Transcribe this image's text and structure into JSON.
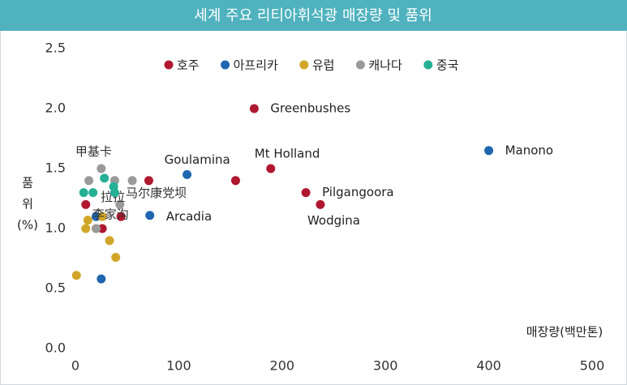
{
  "chart_data": {
    "type": "scatter",
    "title": "세계 주요 리티아휘석광 매장량 및 품위",
    "xlabel": "매장량(백만톤)",
    "ylabel": [
      "품",
      "위",
      "(%)"
    ],
    "xlim": [
      0,
      500
    ],
    "xticks": [
      0,
      100,
      200,
      300,
      400,
      500
    ],
    "ylim": [
      0,
      2.5
    ],
    "yticks": [
      {
        "value": 0,
        "label": "0.0"
      },
      0.5,
      {
        "value": 1,
        "label": "1.0"
      },
      1.5,
      {
        "value": 2,
        "label": "2.0"
      },
      2.5
    ],
    "series": [
      {
        "name": "호주",
        "color": "#b0182f",
        "x": [
          173,
          189,
          223,
          237,
          71,
          155,
          10,
          44,
          26
        ],
        "values": [
          2.0,
          1.5,
          1.3,
          1.2,
          1.4,
          1.4,
          1.2,
          1.1,
          1.0
        ],
        "point_labels": [
          "Greenbushes",
          "Mt Holland",
          "Pilgangoora",
          "Wodgina",
          null,
          null,
          null,
          null,
          null
        ]
      },
      {
        "name": "아프리카",
        "color": "#1f66b0",
        "x": [
          400,
          108,
          72,
          25,
          20
        ],
        "values": [
          1.65,
          1.45,
          1.11,
          0.58,
          1.1
        ],
        "point_labels": [
          "Manono",
          "Goulamina",
          "Arcadia",
          null,
          null
        ]
      },
      {
        "name": "유럽",
        "color": "#d1a628",
        "x": [
          1,
          10,
          12,
          26,
          33,
          39,
          20
        ],
        "values": [
          0.61,
          1.0,
          1.07,
          1.1,
          0.9,
          0.76,
          1.0
        ],
        "point_labels": [
          null,
          null,
          null,
          null,
          null,
          null,
          null
        ]
      },
      {
        "name": "캐나다",
        "color": "#9a9a9a",
        "x": [
          25,
          13,
          38,
          55,
          20,
          43
        ],
        "values": [
          1.5,
          1.4,
          1.4,
          1.4,
          1.0,
          1.2
        ],
        "point_labels": [
          "甲基卡",
          null,
          null,
          "马尔康党坝",
          null,
          "李家沟"
        ]
      },
      {
        "name": "중국",
        "color": "#25b096",
        "x": [
          8,
          17,
          28,
          37,
          38
        ],
        "values": [
          1.3,
          1.3,
          1.42,
          1.35,
          1.3
        ],
        "point_labels": [
          null,
          null,
          null,
          "拉拉",
          null
        ]
      }
    ]
  }
}
